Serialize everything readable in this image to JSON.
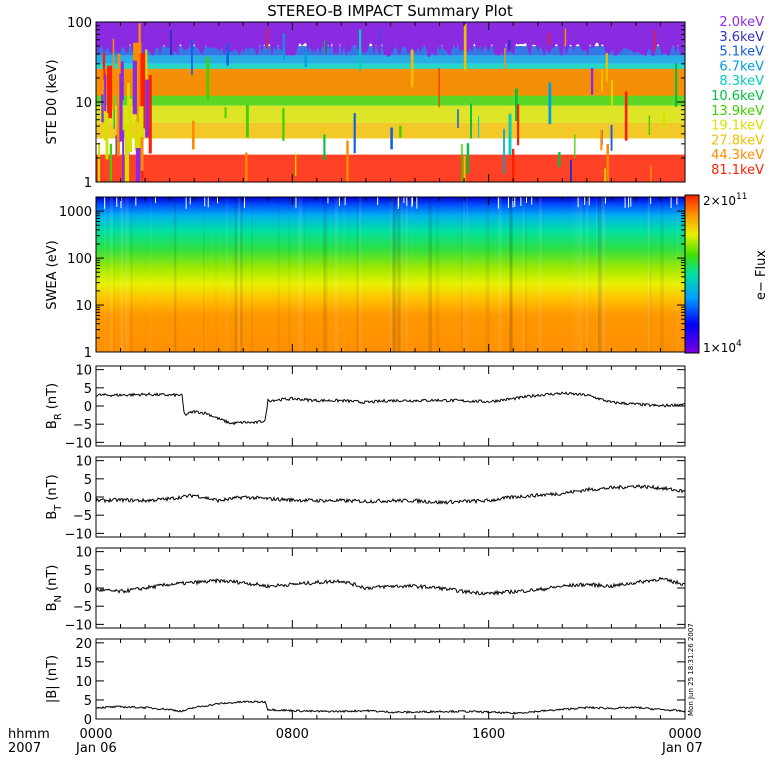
{
  "chart_data": [
    {
      "type": "heatmap",
      "panel": "ste",
      "title": "STEREO-B IMPACT Summary Plot",
      "ylabel": "STE D0 (keV)",
      "ylim": [
        1,
        100
      ],
      "yscale": "log",
      "yticks": [
        "1",
        "10",
        "100"
      ],
      "ytick_values": [
        1,
        10,
        100
      ],
      "legend": [
        {
          "label": "2.0keV",
          "color": "#8a2be2"
        },
        {
          "label": "3.6keV",
          "color": "#3030c0"
        },
        {
          "label": "5.1keV",
          "color": "#1060e0"
        },
        {
          "label": "6.7keV",
          "color": "#00a0e0"
        },
        {
          "label": "8.3keV",
          "color": "#00d0c0"
        },
        {
          "label": "10.6keV",
          "color": "#00c040"
        },
        {
          "label": "13.9keV",
          "color": "#40d000"
        },
        {
          "label": "19.1keV",
          "color": "#d8e000"
        },
        {
          "label": "27.8keV",
          "color": "#f0c000"
        },
        {
          "label": "44.3keV",
          "color": "#ff8c00"
        },
        {
          "label": "81.1keV",
          "color": "#ff2000"
        }
      ]
    },
    {
      "type": "heatmap",
      "panel": "swea",
      "ylabel": "SWEA (eV)",
      "ylim": [
        1,
        2000
      ],
      "yscale": "log",
      "yticks": [
        "1",
        "10",
        "100",
        "1000"
      ],
      "ytick_values": [
        1,
        10,
        100,
        1000
      ],
      "colorbar": {
        "label": "e− Flux",
        "max_label": "2×10",
        "max_exp": "11",
        "min_label": "1×10",
        "min_exp": "4"
      }
    },
    {
      "type": "line",
      "panel": "br",
      "ylabel": "B",
      "ylabel_sub": "R",
      "ylabel_unit": "(nT)",
      "ylim": [
        -11,
        11
      ],
      "yticks": [
        "10",
        "5",
        "0",
        "−5",
        "−10"
      ],
      "ytick_values": [
        10,
        5,
        0,
        -5,
        -10
      ],
      "x": [
        0,
        1,
        2,
        3,
        3.5,
        3.6,
        4,
        4.5,
        5,
        5.5,
        6,
        6.5,
        6.9,
        7,
        8,
        9,
        10,
        11,
        12,
        13,
        14,
        15,
        16,
        17,
        18,
        19,
        20,
        21,
        22,
        23,
        24
      ],
      "values": [
        3,
        3,
        3.2,
        3,
        3,
        -2.5,
        -1.5,
        -2,
        -3.5,
        -4.8,
        -4.5,
        -4.6,
        -4,
        1.5,
        2,
        1.5,
        1.5,
        1,
        1.5,
        1.5,
        1.6,
        1.4,
        1.2,
        2,
        3,
        3.5,
        3,
        1,
        0.5,
        0,
        0.5
      ]
    },
    {
      "type": "line",
      "panel": "bt",
      "ylabel": "B",
      "ylabel_sub": "T",
      "ylabel_unit": "(nT)",
      "ylim": [
        -11,
        11
      ],
      "yticks": [
        "10",
        "5",
        "0",
        "−5",
        "−10"
      ],
      "ytick_values": [
        10,
        5,
        0,
        -5,
        -10
      ],
      "x": [
        0,
        1,
        2,
        3,
        4,
        5,
        6,
        7,
        8,
        9,
        10,
        11,
        12,
        13,
        14,
        15,
        16,
        17,
        18,
        19,
        20,
        21,
        22,
        23,
        24
      ],
      "values": [
        -1,
        -0.8,
        -1,
        -0.5,
        0.5,
        -1,
        0,
        -0.5,
        -0.8,
        -1,
        -1,
        -1.2,
        -1,
        -1,
        -1.5,
        -1.2,
        -1,
        0,
        0.5,
        1,
        2,
        2.5,
        3,
        2.5,
        1.5
      ]
    },
    {
      "type": "line",
      "panel": "bn",
      "ylabel": "B",
      "ylabel_sub": "N",
      "ylabel_unit": "(nT)",
      "ylim": [
        -11,
        11
      ],
      "yticks": [
        "10",
        "5",
        "0",
        "−5",
        "−10"
      ],
      "ytick_values": [
        10,
        5,
        0,
        -5,
        -10
      ],
      "x": [
        0,
        1,
        2,
        3,
        4,
        5,
        6,
        7,
        8,
        9,
        10,
        11,
        12,
        13,
        14,
        15,
        16,
        17,
        18,
        19,
        20,
        21,
        22,
        23,
        24
      ],
      "values": [
        -0.5,
        -1,
        0,
        1,
        1.5,
        2,
        1.5,
        0.5,
        1,
        1.5,
        2,
        0,
        0.5,
        0.5,
        0,
        -1,
        -1.5,
        -1,
        -0.5,
        0.5,
        1,
        0.5,
        1.5,
        2.5,
        1
      ]
    },
    {
      "type": "line",
      "panel": "bmag",
      "ylabel": "|B| (nT)",
      "ylim": [
        0,
        21
      ],
      "yticks": [
        "20",
        "15",
        "10",
        "5",
        "0"
      ],
      "ytick_values": [
        20,
        15,
        10,
        5,
        0
      ],
      "x": [
        0,
        1,
        2,
        3,
        3.5,
        4,
        5,
        6,
        6.9,
        7,
        8,
        9,
        10,
        11,
        12,
        13,
        14,
        15,
        16,
        17,
        18,
        19,
        20,
        21,
        22,
        23,
        24
      ],
      "values": [
        3,
        3.2,
        3,
        2.5,
        2,
        3,
        4,
        4.5,
        4.5,
        2.5,
        2.2,
        2,
        2,
        2.2,
        1.8,
        1.8,
        2,
        2,
        1.8,
        1.5,
        2,
        2.5,
        3,
        2.8,
        3,
        2.5,
        2
      ]
    }
  ],
  "xaxis": {
    "ticks": [
      "0000",
      "0800",
      "1600",
      "0000"
    ],
    "tick_hours": [
      0,
      8,
      16,
      24
    ],
    "date_left": "Jan 06",
    "date_right": "Jan 07",
    "corner_top": "hhmm",
    "corner_bottom": "2007"
  },
  "timestamp": "Mon Jun 25 18:31:26 2007"
}
